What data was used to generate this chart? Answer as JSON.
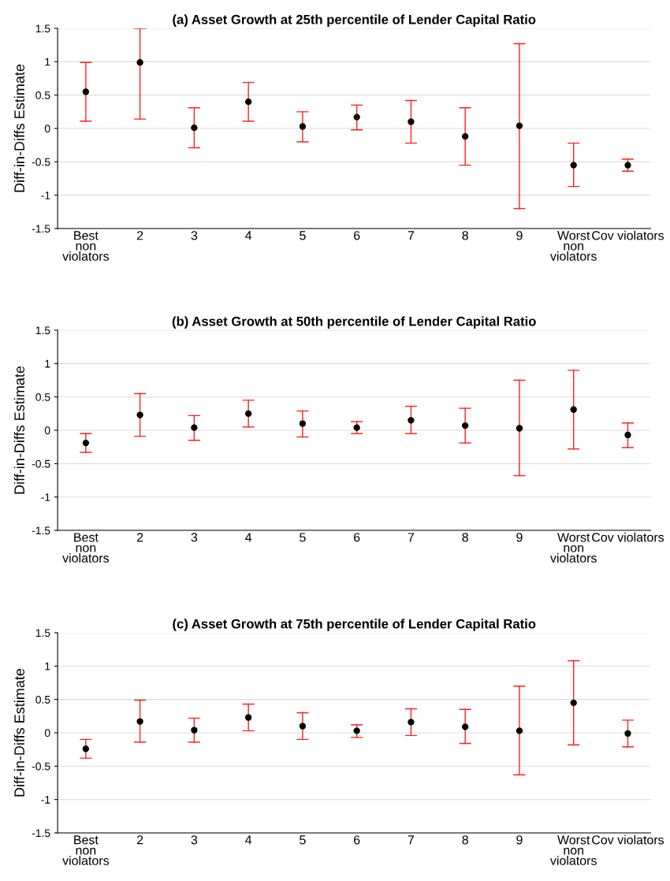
{
  "chart_data": [
    {
      "type": "scatter",
      "title": "(a) Asset Growth at 25th percentile of Lender Capital Ratio",
      "ylabel": "Diff-in-Diffs Estimate",
      "categories": [
        "Best\nnon\nviolators",
        "2",
        "3",
        "4",
        "5",
        "6",
        "7",
        "8",
        "9",
        "Worst\nnon\nviolators",
        "Cov violators"
      ],
      "series": [
        {
          "color": "#000000",
          "values": [
            0.55,
            0.99,
            0.01,
            0.4,
            0.03,
            0.17,
            0.1,
            -0.12,
            0.04,
            -0.55,
            -0.55
          ],
          "errors": [
            [
              0.11,
              0.99
            ],
            [
              0.14,
              1.5
            ],
            [
              -0.29,
              0.31
            ],
            [
              0.11,
              0.69
            ],
            [
              -0.2,
              0.25
            ],
            [
              -0.02,
              0.35
            ],
            [
              -0.22,
              0.42
            ],
            [
              -0.55,
              0.31
            ],
            [
              -1.2,
              1.27
            ],
            [
              -0.87,
              -0.22
            ],
            [
              -0.64,
              -0.46
            ]
          ]
        }
      ],
      "ylim": [
        -1.5,
        1.5
      ],
      "yticks": [
        -1.5,
        -1,
        -0.5,
        0,
        0.5,
        1,
        1.5
      ],
      "grid": "y",
      "marker": "circle"
    },
    {
      "type": "scatter",
      "title": "(b) Asset Growth at 50th percentile of Lender Capital Ratio",
      "ylabel": "Diff-in-Diffs Estimate",
      "categories": [
        "Best\nnon\nviolators",
        "2",
        "3",
        "4",
        "5",
        "6",
        "7",
        "8",
        "9",
        "Worst\nnon\nviolators",
        "Cov violators"
      ],
      "series": [
        {
          "color": "#000000",
          "values": [
            -0.19,
            0.23,
            0.04,
            0.25,
            0.1,
            0.04,
            0.15,
            0.07,
            0.03,
            0.31,
            -0.07
          ],
          "errors": [
            [
              -0.33,
              -0.05
            ],
            [
              -0.09,
              0.55
            ],
            [
              -0.15,
              0.22
            ],
            [
              0.05,
              0.45
            ],
            [
              -0.1,
              0.29
            ],
            [
              -0.05,
              0.13
            ],
            [
              -0.05,
              0.36
            ],
            [
              -0.19,
              0.33
            ],
            [
              -0.68,
              0.75
            ],
            [
              -0.28,
              0.9
            ],
            [
              -0.26,
              0.11
            ]
          ]
        }
      ],
      "ylim": [
        -1.5,
        1.5
      ],
      "yticks": [
        -1.5,
        -1,
        -0.5,
        0,
        0.5,
        1,
        1.5
      ],
      "grid": "y",
      "marker": "circle"
    },
    {
      "type": "scatter",
      "title": "(c) Asset Growth at 75th percentile of Lender Capital Ratio",
      "ylabel": "Diff-in-Diffs Estimate",
      "categories": [
        "Best\nnon\nviolators",
        "2",
        "3",
        "4",
        "5",
        "6",
        "7",
        "8",
        "9",
        "Worst\nnon\nviolators",
        "Cov violators"
      ],
      "series": [
        {
          "color": "#000000",
          "values": [
            -0.24,
            0.17,
            0.04,
            0.23,
            0.1,
            0.03,
            0.16,
            0.09,
            0.03,
            0.45,
            -0.01
          ],
          "errors": [
            [
              -0.38,
              -0.1
            ],
            [
              -0.14,
              0.49
            ],
            [
              -0.14,
              0.22
            ],
            [
              0.03,
              0.43
            ],
            [
              -0.1,
              0.3
            ],
            [
              -0.07,
              0.12
            ],
            [
              -0.04,
              0.36
            ],
            [
              -0.16,
              0.35
            ],
            [
              -0.63,
              0.7
            ],
            [
              -0.18,
              1.08
            ],
            [
              -0.21,
              0.19
            ]
          ]
        }
      ],
      "ylim": [
        -1.5,
        1.5
      ],
      "yticks": [
        -1.5,
        -1,
        -0.5,
        0,
        0.5,
        1,
        1.5
      ],
      "grid": "y",
      "marker": "circle"
    }
  ]
}
